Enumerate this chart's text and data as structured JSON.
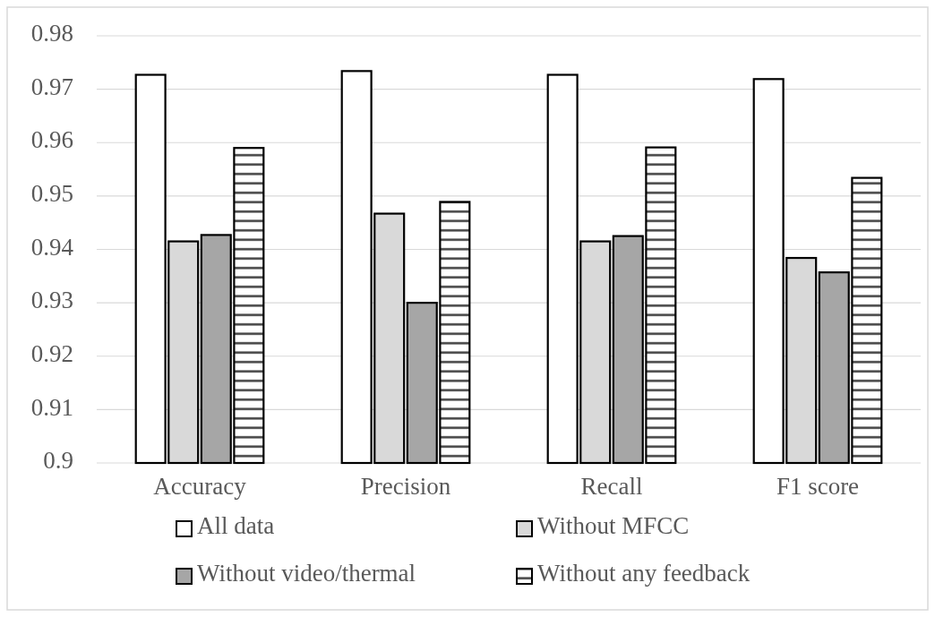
{
  "chart_data": {
    "type": "bar",
    "categories": [
      "Accuracy",
      "Precision",
      "Recall",
      "F1 score"
    ],
    "series": [
      {
        "name": "All data",
        "color": "#ffffff",
        "values": [
          0.9727,
          0.9734,
          0.9727,
          0.9719
        ]
      },
      {
        "name": "Without MFCC",
        "color": "#d9d9d9",
        "values": [
          0.9415,
          0.9467,
          0.9415,
          0.9384
        ]
      },
      {
        "name": "Without video/thermal",
        "color": "#a6a6a6",
        "values": [
          0.9427,
          0.93,
          0.9425,
          0.9357
        ]
      },
      {
        "name": "Without any feedback",
        "color": "#000000",
        "values": [
          0.959,
          0.9489,
          0.9591,
          0.9534
        ]
      }
    ],
    "ylim": [
      0.9,
      0.98
    ],
    "yticks": [
      0.9,
      0.91,
      0.92,
      0.93,
      0.94,
      0.95,
      0.96,
      0.97,
      0.98
    ],
    "grid": "y",
    "legend": "bottom"
  }
}
